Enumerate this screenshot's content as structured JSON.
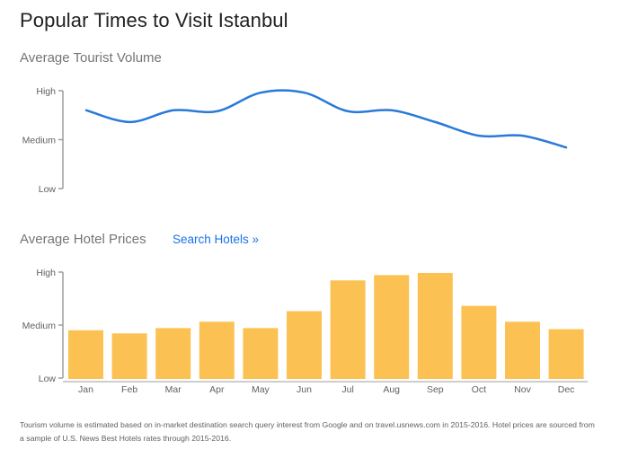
{
  "header": {
    "title": "Popular Times to Visit Istanbul"
  },
  "links": {
    "search_hotels": "Search Hotels »"
  },
  "footnote": "Tourism volume is estimated based on in-market destination search query interest from Google and on travel.usnews.com in 2015-2016. Hotel prices are sourced from a sample of U.S. News Best Hotels rates through 2015-2016.",
  "colors": {
    "line": "#2979d9",
    "bar": "#fcc153",
    "axis": "#9e9e9e",
    "link": "#1a73e8"
  },
  "chart_data": [
    {
      "type": "line",
      "title": "Average Tourist Volume",
      "categories": [
        "Jan",
        "Feb",
        "Mar",
        "Apr",
        "May",
        "Jun",
        "Jul",
        "Aug",
        "Sep",
        "Oct",
        "Nov",
        "Dec"
      ],
      "y_ticks": [
        "Low",
        "Medium",
        "High"
      ],
      "ylim": [
        0,
        1
      ],
      "series": [
        {
          "values": [
            0.8,
            0.68,
            0.8,
            0.79,
            0.98,
            0.98,
            0.79,
            0.8,
            0.68,
            0.54,
            0.54,
            0.42
          ]
        }
      ],
      "grid": false
    },
    {
      "type": "bar",
      "title": "Average Hotel Prices",
      "categories": [
        "Jan",
        "Feb",
        "Mar",
        "Apr",
        "May",
        "Jun",
        "Jul",
        "Aug",
        "Sep",
        "Oct",
        "Nov",
        "Dec"
      ],
      "y_ticks": [
        "Low",
        "Medium",
        "High"
      ],
      "ylim": [
        0,
        1
      ],
      "values": [
        0.46,
        0.43,
        0.48,
        0.54,
        0.48,
        0.64,
        0.93,
        0.98,
        1.0,
        0.69,
        0.54,
        0.47
      ],
      "grid": false
    }
  ]
}
